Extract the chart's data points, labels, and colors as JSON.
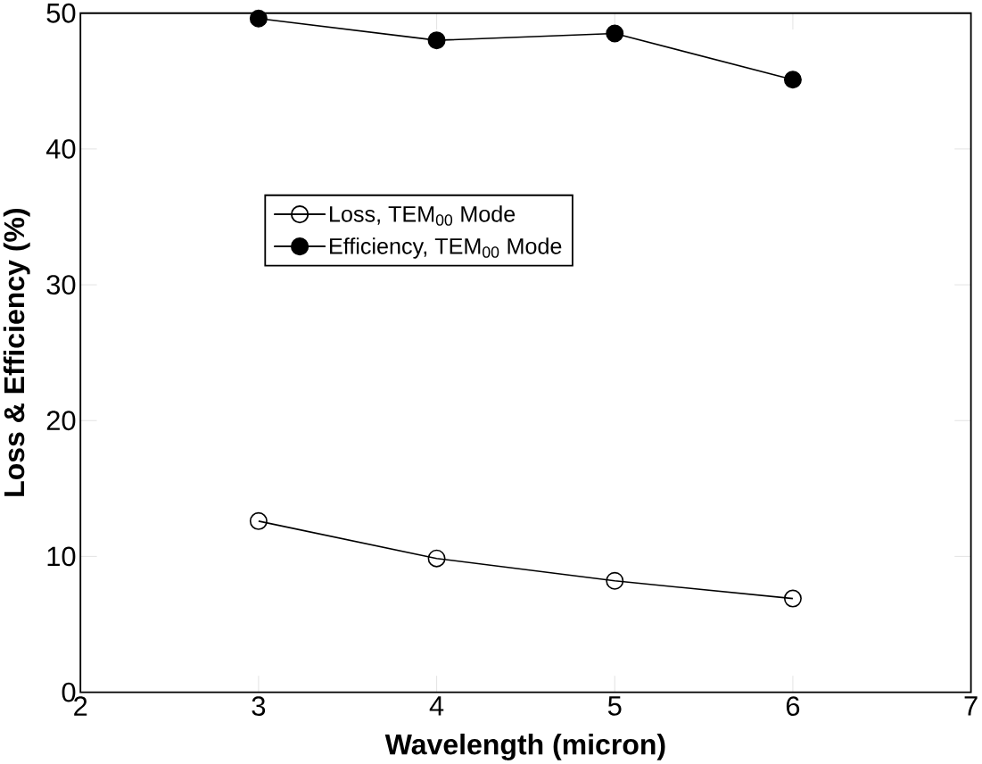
{
  "chart_data": {
    "type": "line",
    "xlabel": "Wavelength  (micron)",
    "ylabel": "Loss & Efficiency (%)",
    "x": [
      3,
      4,
      5,
      6
    ],
    "series": [
      {
        "name": "Loss, TEM$_{00}$ Mode",
        "color": "#000000",
        "marker": "circle",
        "values": [
          12.6,
          9.85,
          8.2,
          6.9
        ]
      },
      {
        "name": "Efficiency,  TEM$_{00}$ Mode",
        "color": "#000000",
        "marker": "circle",
        "values": [
          49.6,
          48.0,
          48.5,
          45.1
        ]
      }
    ],
    "xlim": [
      2,
      7
    ],
    "ylim": [
      0,
      50
    ],
    "xticks": [
      2,
      3,
      4,
      5,
      6,
      7
    ],
    "yticks": [
      0,
      10,
      20,
      30,
      40,
      50
    ],
    "grid": false,
    "legend": "center",
    "line_style": "solid"
  }
}
